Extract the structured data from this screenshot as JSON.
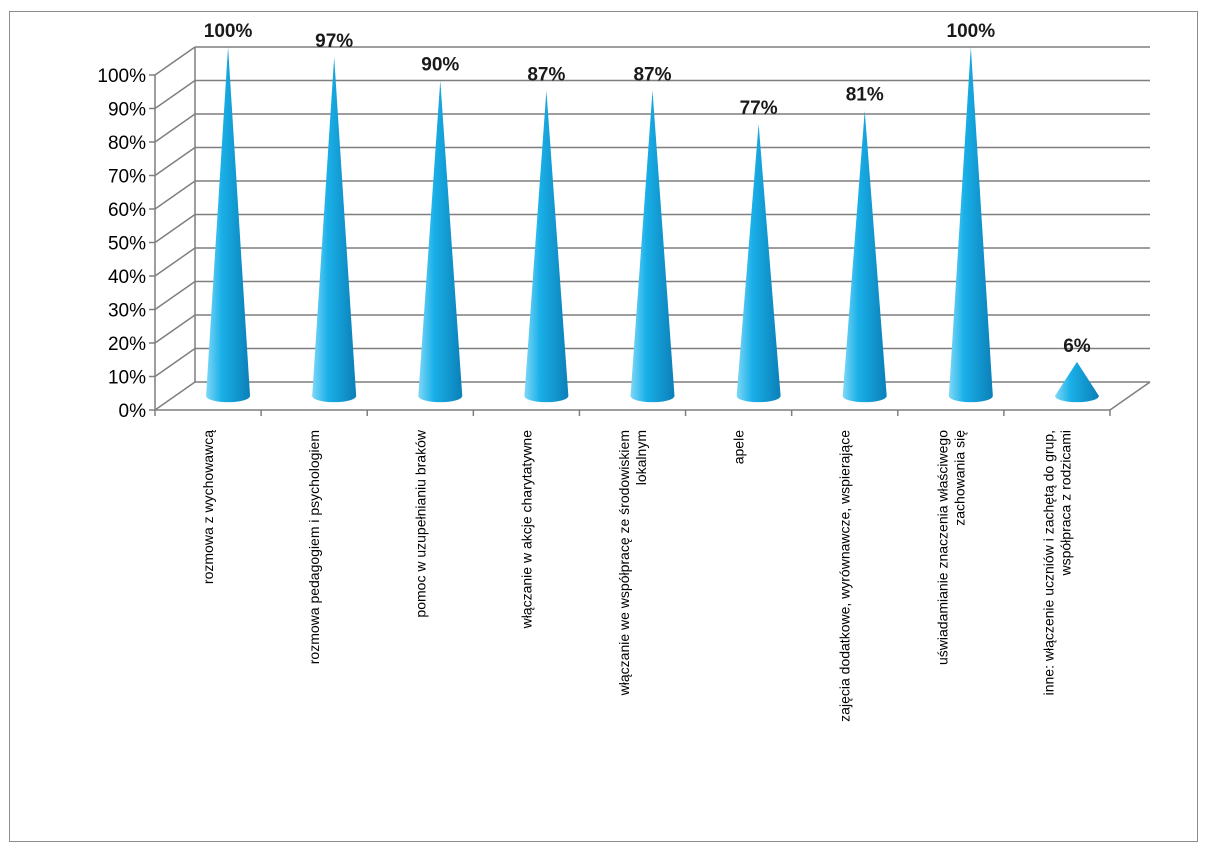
{
  "chart_data": {
    "type": "bar",
    "subtype": "3d-cone",
    "categories": [
      [
        "rozmowa z wychowawcą"
      ],
      [
        "rozmowa pedagogiem i psychologiem"
      ],
      [
        "pomoc w uzupełnianiu braków"
      ],
      [
        "włączanie w akcje charytatywne"
      ],
      [
        "włączanie we współpracę ze środowiskiem",
        "lokalnym"
      ],
      [
        "apele"
      ],
      [
        "zajęcia dodatkowe, wyrównawcze, wspierające"
      ],
      [
        "uświadamianie znaczenia właściwego",
        "zachowania się"
      ],
      [
        "inne: włączenie  uczniów i zachętą do grup,",
        "współpraca z rodzicami"
      ]
    ],
    "values": [
      100,
      97,
      90,
      87,
      87,
      77,
      81,
      100,
      6
    ],
    "data_labels": [
      "100%",
      "97%",
      "90%",
      "87%",
      "87%",
      "77%",
      "81%",
      "100%",
      "6%"
    ],
    "y_ticks": [
      "0%",
      "10%",
      "20%",
      "30%",
      "40%",
      "50%",
      "60%",
      "70%",
      "80%",
      "90%",
      "100%"
    ],
    "ylim": [
      0,
      100
    ],
    "grid": true,
    "legend": "none",
    "colors": {
      "cone_light": "#7fd8f8",
      "cone_mid": "#1ab0e8",
      "cone_dark": "#0b7fb8",
      "grid": "#7f7f7f"
    }
  }
}
